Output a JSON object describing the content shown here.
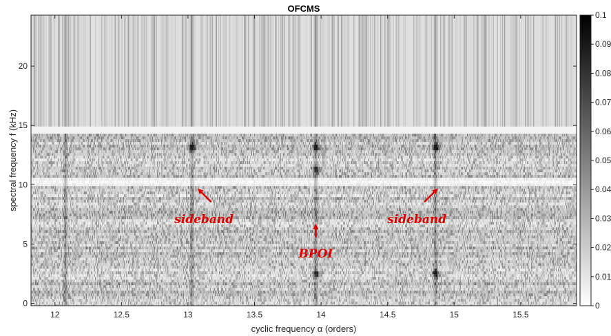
{
  "chart_data": {
    "type": "heatmap",
    "title": "OFCMS",
    "xlabel": "cyclic frequency α (orders)",
    "ylabel": "spectral frequency f (kHz)",
    "xlim": [
      11.82,
      15.92
    ],
    "ylim": [
      -0.2,
      24.3
    ],
    "x_ticks": [
      "12",
      "12.5",
      "13",
      "13.5",
      "14",
      "14.5",
      "15",
      "15.5"
    ],
    "x_tick_values": [
      12,
      12.5,
      13,
      13.5,
      14,
      14.5,
      15,
      15.5
    ],
    "y_ticks": [
      "0",
      "5",
      "10",
      "15",
      "20"
    ],
    "y_tick_values": [
      0,
      5,
      10,
      15,
      20
    ],
    "colormap": "gray-reversed",
    "colorbar": {
      "range": [
        0,
        0.1
      ],
      "ticks": [
        "0",
        "0.01",
        "0.02",
        "0.03",
        "0.04",
        "0.05",
        "0.06",
        "0.07",
        "0.08",
        "0.09",
        "0.1"
      ],
      "tick_values": [
        0,
        0.01,
        0.02,
        0.03,
        0.04,
        0.05,
        0.06,
        0.07,
        0.08,
        0.09,
        0.1
      ]
    },
    "annotations": [
      {
        "text": "sideband",
        "arrow_tip": [
          13.08,
          9.6
        ],
        "text_pos": [
          13.12,
          7.8
        ]
      },
      {
        "text": "BPOI",
        "arrow_tip": [
          13.96,
          6.6
        ],
        "text_pos": [
          13.96,
          4.9
        ]
      },
      {
        "text": "sideband",
        "arrow_tip": [
          14.87,
          9.6
        ],
        "text_pos": [
          14.72,
          7.8
        ]
      }
    ],
    "features": {
      "ridge_columns_alpha": [
        12.08,
        13.03,
        13.96,
        14.86
      ],
      "bright_bands_f": [
        14.6,
        10.25
      ],
      "hot_spots": [
        {
          "alpha": 13.03,
          "f": 13.3
        },
        {
          "alpha": 13.96,
          "f": 13.3
        },
        {
          "alpha": 13.96,
          "f": 11.4
        },
        {
          "alpha": 14.86,
          "f": 13.3
        },
        {
          "alpha": 13.96,
          "f": 2.6
        },
        {
          "alpha": 14.86,
          "f": 2.6
        }
      ]
    }
  }
}
